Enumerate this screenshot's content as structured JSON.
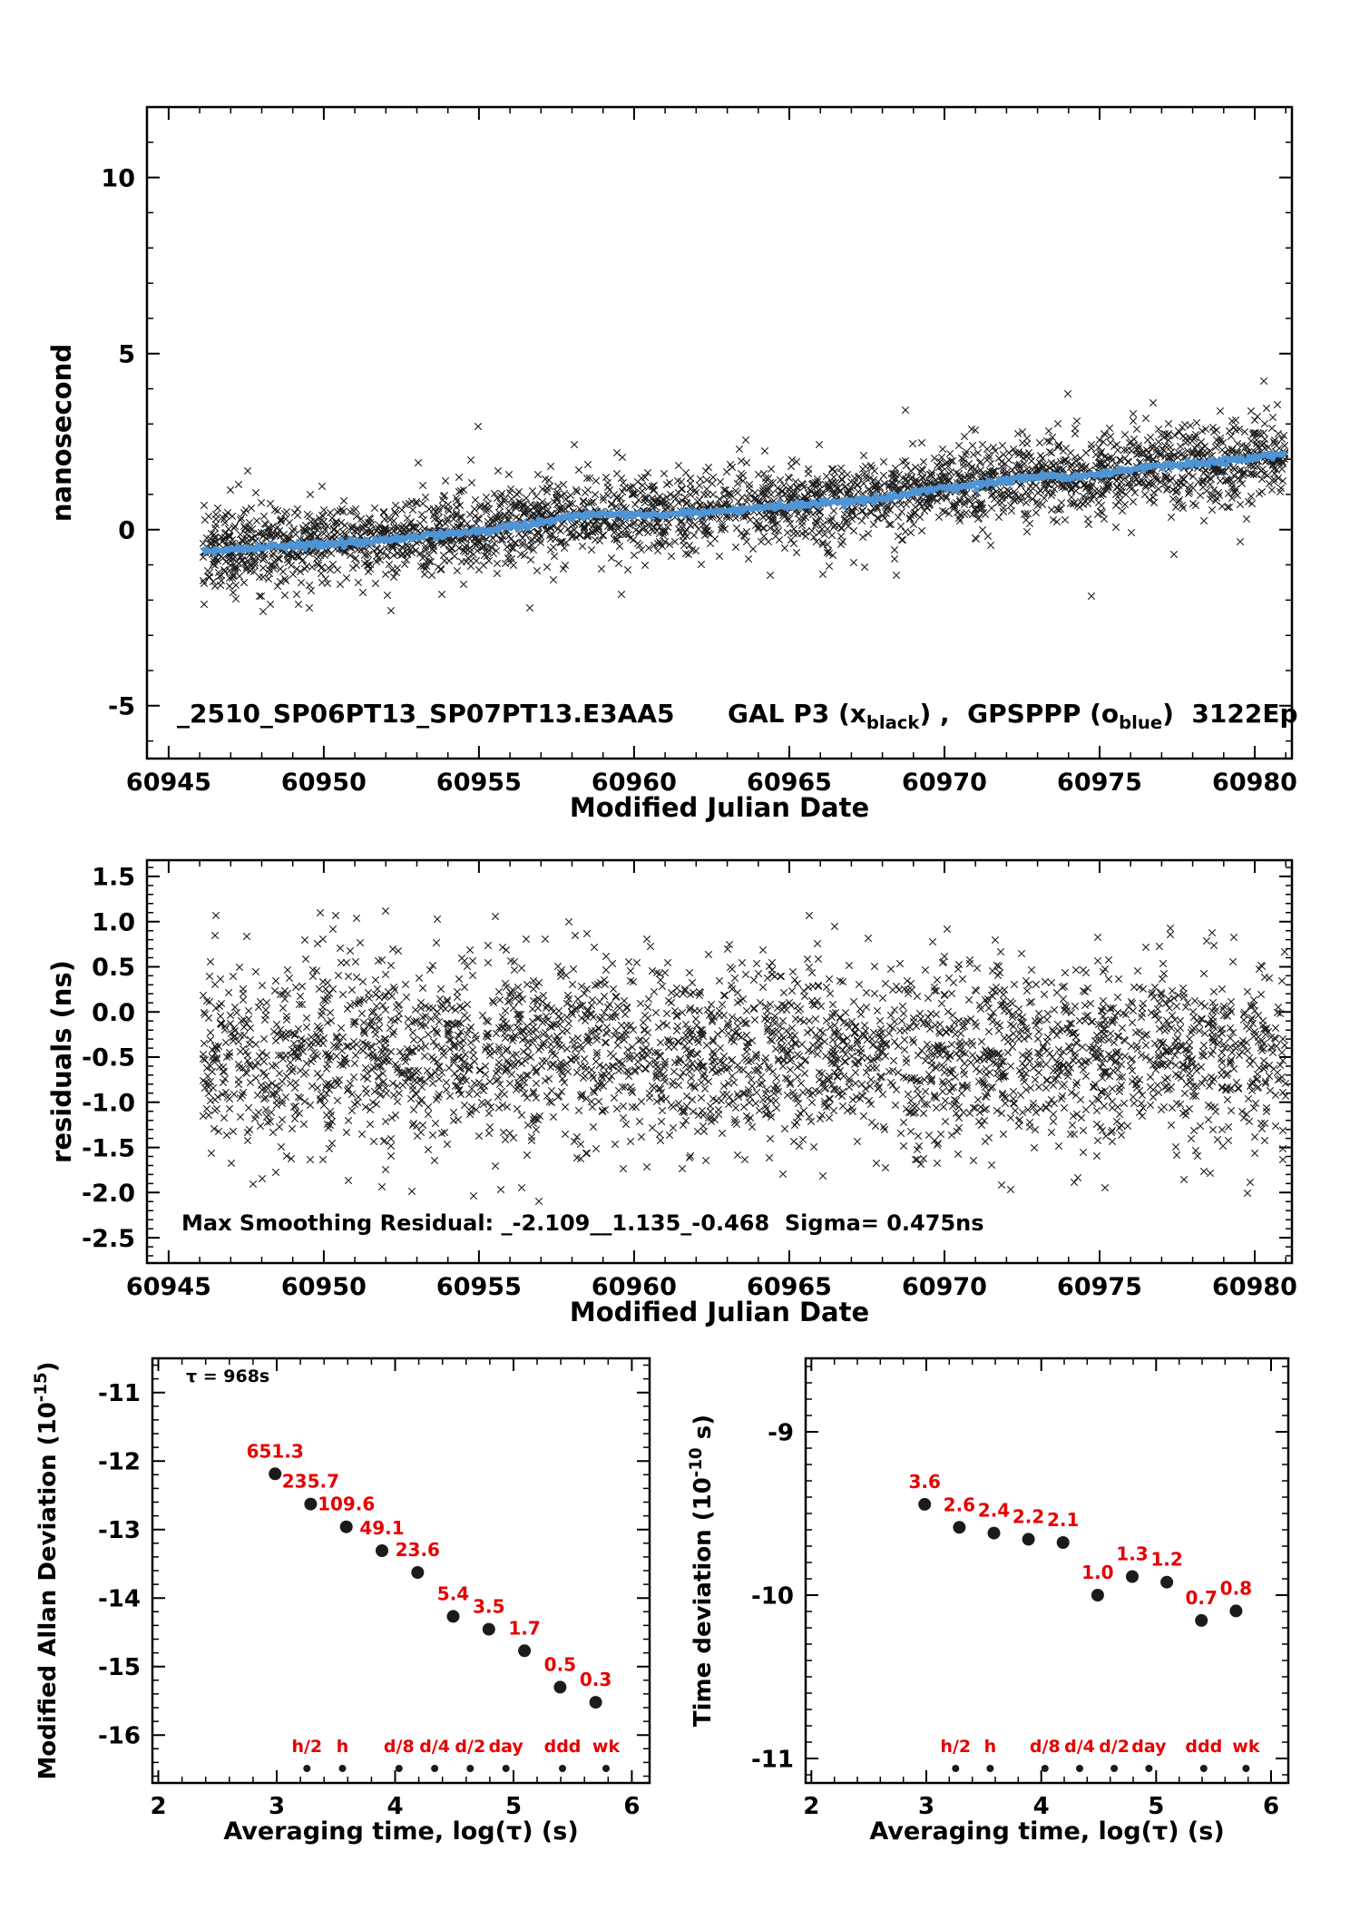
{
  "colors": {
    "marker_black": "#1b1b1b",
    "smooth_blue": "#4f94d4",
    "label_red": "#e60000",
    "axis": "#000000",
    "background": "#ffffff"
  },
  "chart_data": [
    {
      "id": "clock-comparison",
      "type": "scatter",
      "title_parts": [
        {
          "t": "_2510_SP06PT13_SP07PT13.E3AA5      GAL P3 (x"
        },
        {
          "t": "black",
          "sub": true
        },
        {
          "t": ") ,  GPSPPP (o"
        },
        {
          "t": "blue",
          "sub": true
        },
        {
          "t": ")  3122Ep"
        }
      ],
      "xlabel": "Modified Julian Date",
      "ylabel": "nanosecond",
      "xlim": [
        60944.3,
        60981.2
      ],
      "ylim": [
        -6.5,
        12
      ],
      "xticks": [
        {
          "v": 60945,
          "l": "60945"
        },
        {
          "v": 60950,
          "l": "60950"
        },
        {
          "v": 60955,
          "l": "60955"
        },
        {
          "v": 60960,
          "l": "60960"
        },
        {
          "v": 60965,
          "l": "60965"
        },
        {
          "v": 60970,
          "l": "60970"
        },
        {
          "v": 60975,
          "l": "60975"
        },
        {
          "v": 60980,
          "l": "60980"
        }
      ],
      "yticks": [
        {
          "v": 10,
          "l": "10"
        },
        {
          "v": 5,
          "l": "5"
        },
        {
          "v": 0,
          "l": "0"
        },
        {
          "v": -5,
          "l": "-5"
        }
      ],
      "xminor": 1,
      "yminor": 1,
      "scatter": {
        "series": "GAL P3 (black x)",
        "n": 3000,
        "seed": 20251,
        "x_range": [
          60946.1,
          60981.0
        ],
        "sigma": 0.55,
        "tail_sigma": 1.05,
        "tail_frac": 0.12,
        "clip": [
          -2.55,
          4.9
        ]
      },
      "smooth": {
        "series": "GPSPPP (blue o)",
        "n": 760,
        "seed": 771,
        "sigma": 0.045,
        "x_range": [
          60946.15,
          60980.95
        ]
      },
      "trend": {
        "x": [
          60946,
          60948,
          60950,
          60952,
          60954,
          60955.5,
          60957,
          60958,
          60959,
          60960,
          60961,
          60962.5,
          60964,
          60965.5,
          60967,
          60968.3,
          60968.8,
          60969.5,
          60970.5,
          60971.5,
          60972.5,
          60973.2,
          60974,
          60974.8,
          60975.5,
          60976.5,
          60977.5,
          60978.5,
          60979.5,
          60981
        ],
        "y": [
          -0.62,
          -0.5,
          -0.42,
          -0.28,
          -0.12,
          0.0,
          0.22,
          0.38,
          0.45,
          0.4,
          0.42,
          0.52,
          0.62,
          0.7,
          0.8,
          0.88,
          1.05,
          1.15,
          1.22,
          1.32,
          1.45,
          1.55,
          1.5,
          1.55,
          1.65,
          1.78,
          1.85,
          1.9,
          2.0,
          2.18
        ]
      }
    },
    {
      "id": "residuals",
      "type": "scatter",
      "xlabel": "Modified Julian Date",
      "ylabel": "residuals (ns)",
      "annotation": "Max Smoothing Residual: _-2.109__1.135_-0.468  Sigma= 0.475ns",
      "stats": {
        "min": -2.109,
        "max": 1.135,
        "mean": -0.468,
        "sigma_ns": 0.475
      },
      "xlim": [
        60944.3,
        60981.2
      ],
      "ylim": [
        -2.78,
        1.68
      ],
      "xticks": [
        {
          "v": 60945,
          "l": "60945"
        },
        {
          "v": 60950,
          "l": "60950"
        },
        {
          "v": 60955,
          "l": "60955"
        },
        {
          "v": 60960,
          "l": "60960"
        },
        {
          "v": 60965,
          "l": "60965"
        },
        {
          "v": 60970,
          "l": "60970"
        },
        {
          "v": 60975,
          "l": "60975"
        },
        {
          "v": 60980,
          "l": "60980"
        }
      ],
      "yticks": [
        {
          "v": 1.5,
          "l": "1.5"
        },
        {
          "v": 1,
          "l": "1.0"
        },
        {
          "v": 0.5,
          "l": "0.5"
        },
        {
          "v": 0,
          "l": "0.0"
        },
        {
          "v": -0.5,
          "l": "-0.5"
        },
        {
          "v": -1,
          "l": "-1.0"
        },
        {
          "v": -1.5,
          "l": "-1.5"
        },
        {
          "v": -2,
          "l": "-2.0"
        },
        {
          "v": -2.5,
          "l": "-2.5"
        }
      ],
      "xminor": 1,
      "yminor": 0.1,
      "scatter": {
        "n": 3000,
        "seed": 90817,
        "x_range": [
          60946.1,
          60981.0
        ],
        "mean": -0.468,
        "sigma": 0.48,
        "tail_sigma": 0.85,
        "tail_frac": 0.15,
        "clip": [
          -2.109,
          1.135
        ]
      }
    },
    {
      "id": "mdev",
      "type": "scatter",
      "xlabel": "Averaging time, log(τ) (s)",
      "ylabel_parts": [
        {
          "t": "Modified Allan Deviation (10"
        },
        {
          "t": "-15",
          "sup": true
        },
        {
          "t": ")"
        }
      ],
      "tau_annotation": "τ = 968s",
      "xlim": [
        1.95,
        6.15
      ],
      "ylim": [
        -16.7,
        -10.5
      ],
      "xticks": [
        {
          "v": 2,
          "l": "2"
        },
        {
          "v": 3,
          "l": "3"
        },
        {
          "v": 4,
          "l": "4"
        },
        {
          "v": 5,
          "l": "5"
        },
        {
          "v": 6,
          "l": "6"
        }
      ],
      "yticks": [
        {
          "v": -11,
          "l": "-11"
        },
        {
          "v": -12,
          "l": "-12"
        },
        {
          "v": -13,
          "l": "-13"
        },
        {
          "v": -14,
          "l": "-14"
        },
        {
          "v": -15,
          "l": "-15"
        },
        {
          "v": -16,
          "l": "-16"
        }
      ],
      "xminor": 0.2,
      "yminor": 0.2,
      "points": {
        "log_tau": [
          2.986,
          3.287,
          3.588,
          3.889,
          4.19,
          4.491,
          4.792,
          5.093,
          5.394,
          5.695
        ],
        "values": [
          651.3,
          235.7,
          109.6,
          49.1,
          23.6,
          5.4,
          3.5,
          1.7,
          0.5,
          0.3
        ],
        "labels": [
          "651.3",
          "235.7",
          "109.6",
          "49.1",
          "23.6",
          "5.4",
          "3.5",
          "1.7",
          "0.5",
          "0.3"
        ],
        "exponent": -15
      },
      "tau_marks": {
        "log_tau": [
          3.255,
          3.556,
          4.033,
          4.334,
          4.635,
          4.937,
          5.414,
          5.782
        ],
        "labels": [
          "h/2",
          "h",
          "d/8",
          "d/4",
          "d/2",
          "day",
          "ddd",
          "wk"
        ]
      }
    },
    {
      "id": "tdev",
      "type": "scatter",
      "xlabel": "Averaging time, log(τ) (s)",
      "ylabel_parts": [
        {
          "t": "Time deviation (10"
        },
        {
          "t": "-10",
          "sup": true
        },
        {
          "t": " s)"
        }
      ],
      "xlim": [
        1.95,
        6.15
      ],
      "ylim": [
        -11.15,
        -8.55
      ],
      "xticks": [
        {
          "v": 2,
          "l": "2"
        },
        {
          "v": 3,
          "l": "3"
        },
        {
          "v": 4,
          "l": "4"
        },
        {
          "v": 5,
          "l": "5"
        },
        {
          "v": 6,
          "l": "6"
        }
      ],
      "yticks": [
        {
          "v": -9,
          "l": "-9"
        },
        {
          "v": -10,
          "l": "-10"
        },
        {
          "v": -11,
          "l": "-11"
        }
      ],
      "xminor": 0.2,
      "yminor": 0.1,
      "points": {
        "log_tau": [
          2.986,
          3.287,
          3.588,
          3.889,
          4.19,
          4.491,
          4.792,
          5.093,
          5.394,
          5.695
        ],
        "values": [
          3.6,
          2.6,
          2.4,
          2.2,
          2.1,
          1.0,
          1.3,
          1.2,
          0.7,
          0.8
        ],
        "labels": [
          "3.6",
          "2.6",
          "2.4",
          "2.2",
          "2.1",
          "1.0",
          "1.3",
          "1.2",
          "0.7",
          "0.8"
        ],
        "exponent": -10
      },
      "tau_marks": {
        "log_tau": [
          3.255,
          3.556,
          4.033,
          4.334,
          4.635,
          4.937,
          5.414,
          5.782
        ],
        "labels": [
          "h/2",
          "h",
          "d/8",
          "d/4",
          "d/2",
          "day",
          "ddd",
          "wk"
        ]
      }
    }
  ]
}
